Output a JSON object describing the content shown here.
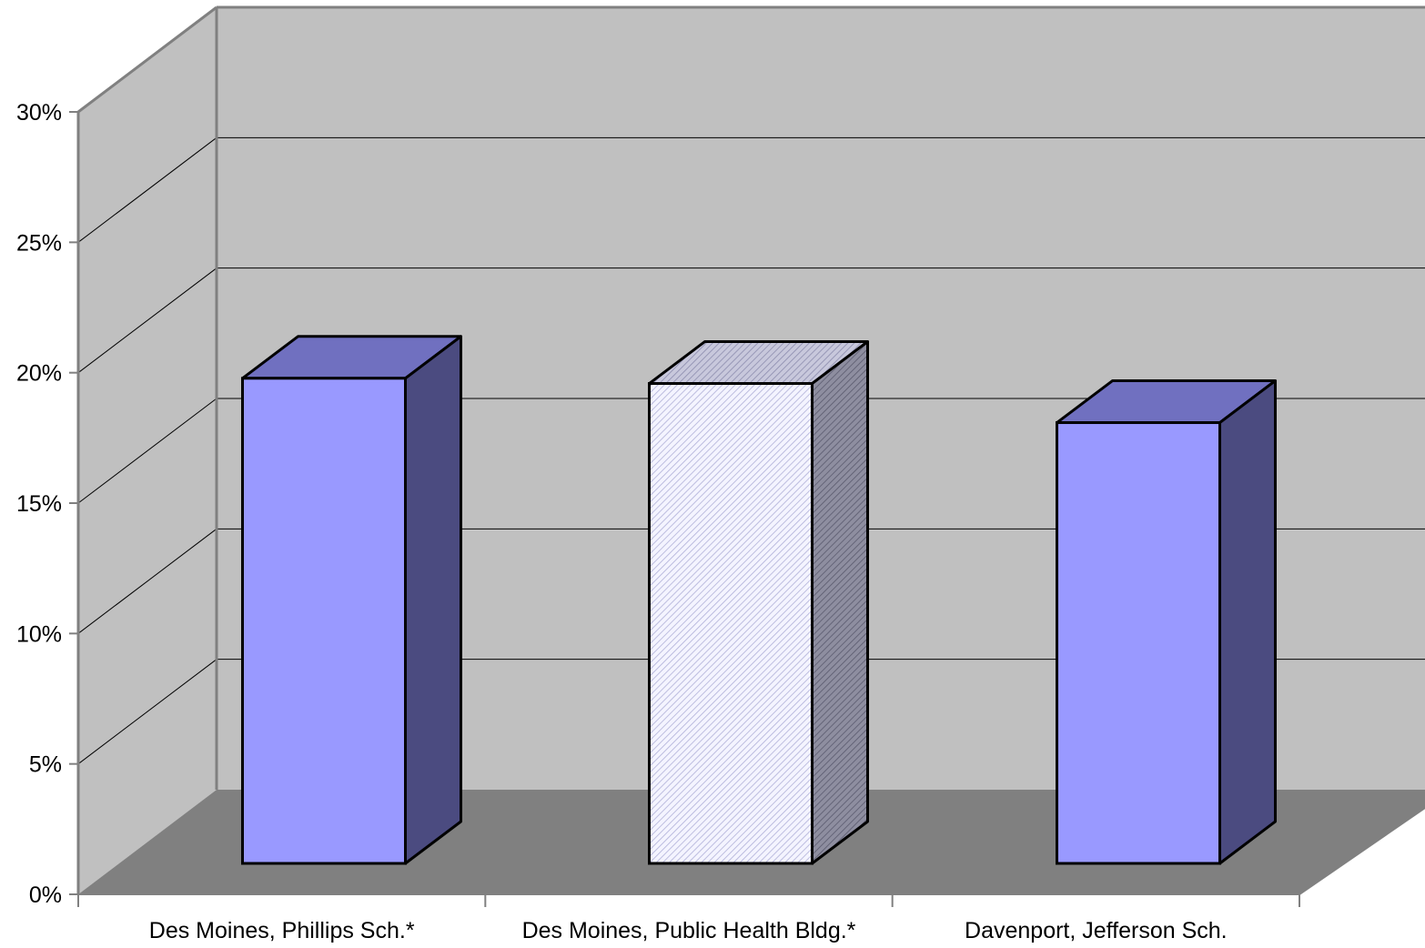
{
  "chart_data": {
    "type": "bar",
    "style": "3d-column",
    "title": "",
    "xlabel": "",
    "ylabel": "",
    "ylim": [
      0,
      30
    ],
    "y_ticks": [
      "0%",
      "5%",
      "10%",
      "15%",
      "20%",
      "25%",
      "30%"
    ],
    "y_tick_values": [
      0,
      5,
      10,
      15,
      20,
      25,
      30
    ],
    "grid": true,
    "legend": "none",
    "categories": [
      "Des Moines, Phillips Sch.*",
      "Des Moines, Public Health Bldg.*",
      "Davenport, Jefferson Sch."
    ],
    "values": [
      18.6,
      18.4,
      16.9
    ],
    "unit": "%",
    "bar_styles": [
      "solid",
      "hatched",
      "solid"
    ]
  },
  "colors": {
    "bar_front": "#9999ff",
    "bar_top": "#7070c0",
    "bar_side": "#4b4b80",
    "hatched_front_base": "#f4f4ff",
    "hatched_line": "#b0b0d8",
    "hatched_top": "#b4b4cc",
    "hatched_side": "#7a7a8e",
    "back_wall": "#c0c0c0",
    "side_wall": "#c0c0c0",
    "floor": "#808080",
    "gridline": "#000000",
    "axis": "#808080"
  }
}
